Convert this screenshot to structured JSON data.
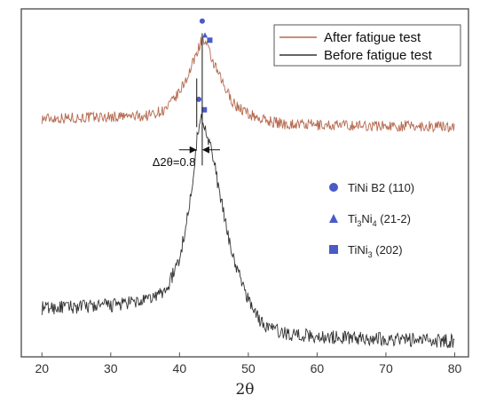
{
  "chart_data": {
    "type": "line",
    "title": "",
    "xlabel": "2θ",
    "ylabel": "",
    "xlim": [
      17,
      82
    ],
    "ylim": [
      0,
      100
    ],
    "x_ticks": [
      20,
      30,
      40,
      50,
      60,
      70,
      80
    ],
    "x_tick_labels": [
      "20",
      "30",
      "40",
      "50",
      "60",
      "70",
      "80"
    ],
    "grid": false,
    "legend_position": "top-right",
    "series": [
      {
        "name": "After fatigue test",
        "color": "#b5694f",
        "baseline": 68.5,
        "noise": 1.6,
        "points": [
          [
            20,
            68.5
          ],
          [
            35,
            69.2
          ],
          [
            38,
            71.0
          ],
          [
            40,
            76.0
          ],
          [
            41.5,
            82.0
          ],
          [
            42.5,
            87.5
          ],
          [
            43.2,
            91.0
          ],
          [
            43.8,
            90.0
          ],
          [
            45,
            84.0
          ],
          [
            46.5,
            77.5
          ],
          [
            48,
            72.5
          ],
          [
            50,
            69.8
          ],
          [
            52,
            68.2
          ],
          [
            55,
            67.0
          ],
          [
            60,
            66.6
          ],
          [
            70,
            66.4
          ],
          [
            80,
            66.2
          ]
        ]
      },
      {
        "name": "Before fatigue test",
        "color": "#333333",
        "baseline": 14,
        "noise": 2.0,
        "points": [
          [
            20,
            14.0
          ],
          [
            30,
            14.8
          ],
          [
            35,
            16.0
          ],
          [
            38,
            19.0
          ],
          [
            40,
            28.0
          ],
          [
            41.5,
            44.0
          ],
          [
            42.5,
            62.0
          ],
          [
            43.1,
            69.0
          ],
          [
            43.8,
            66.0
          ],
          [
            44.8,
            58.0
          ],
          [
            46.5,
            40.0
          ],
          [
            48,
            27.0
          ],
          [
            50,
            16.5
          ],
          [
            52,
            9.5
          ],
          [
            55,
            6.8
          ],
          [
            60,
            5.8
          ],
          [
            70,
            5.2
          ],
          [
            80,
            4.5
          ]
        ]
      }
    ],
    "phases": [
      {
        "label_main": "TiNi B2 (110)",
        "symbol": "circle",
        "color": "#4a5bc7"
      },
      {
        "label_main": "Ti",
        "sub1": "3",
        "mid": "Ni",
        "sub2": "4",
        "tail": " (21-2)",
        "symbol": "triangle",
        "color": "#4a5bc7"
      },
      {
        "label_main": "TiNi",
        "sub1": "3",
        "tail": " (202)",
        "symbol": "square",
        "color": "#4a5bc7"
      }
    ],
    "peak_markers": [
      {
        "series": "After fatigue test",
        "symbol": "circle",
        "x": 43.3,
        "y": 96.5
      },
      {
        "series": "After fatigue test",
        "symbol": "triangle",
        "x": 43.7,
        "y": 92.5
      },
      {
        "series": "After fatigue test",
        "symbol": "square",
        "x": 44.4,
        "y": 91.0
      },
      {
        "series": "Before fatigue test",
        "symbol": "circle",
        "x": 42.8,
        "y": 74.0
      },
      {
        "series": "Before fatigue test",
        "symbol": "square",
        "x": 43.6,
        "y": 71.0
      }
    ],
    "annotation": {
      "text": "Δ2θ=0.8",
      "left_x": 42.5,
      "right_x": 43.3,
      "y": 59.5
    }
  }
}
